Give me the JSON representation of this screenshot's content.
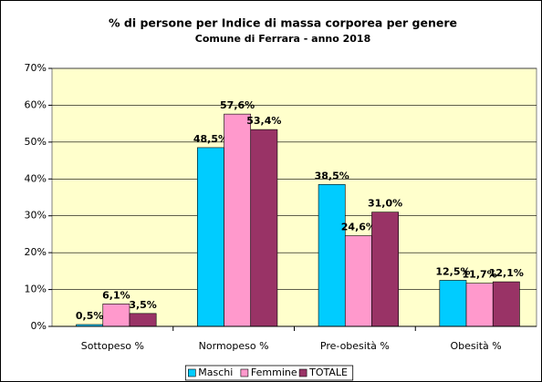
{
  "chart_data": {
    "type": "bar",
    "title": "% di persone per Indice di massa corporea per genere",
    "subtitle": "Comune di Ferrara - anno 2018",
    "categories": [
      "Sottopeso %",
      "Normopeso %",
      "Pre-obesità %",
      "Obesità %"
    ],
    "series": [
      {
        "name": "Maschi",
        "color": "#00CCFF",
        "values": [
          0.5,
          48.5,
          38.5,
          12.5
        ],
        "value_labels": [
          "0,5%",
          "48,5%",
          "38,5%",
          "12,5%"
        ]
      },
      {
        "name": "Femmine",
        "color": "#FF99CC",
        "values": [
          6.1,
          57.6,
          24.6,
          11.7
        ],
        "value_labels": [
          "6,1%",
          "57,6%",
          "24,6%",
          "11,7%"
        ]
      },
      {
        "name": "TOTALE",
        "color": "#993366",
        "values": [
          3.5,
          53.4,
          31.0,
          12.1
        ],
        "value_labels": [
          "3,5%",
          "53,4%",
          "31,0%",
          "12,1%"
        ]
      }
    ],
    "ylim": [
      0,
      70
    ],
    "yticks": [
      {
        "value": 0,
        "label": "0%"
      },
      {
        "value": 10,
        "label": "10%"
      },
      {
        "value": 20,
        "label": "20%"
      },
      {
        "value": 30,
        "label": "30%"
      },
      {
        "value": 40,
        "label": "40%"
      },
      {
        "value": 50,
        "label": "50%"
      },
      {
        "value": 60,
        "label": "60%"
      },
      {
        "value": 70,
        "label": "70%"
      }
    ],
    "grid": true,
    "legend": "bottom",
    "plot_background": "#FFFFCC"
  }
}
